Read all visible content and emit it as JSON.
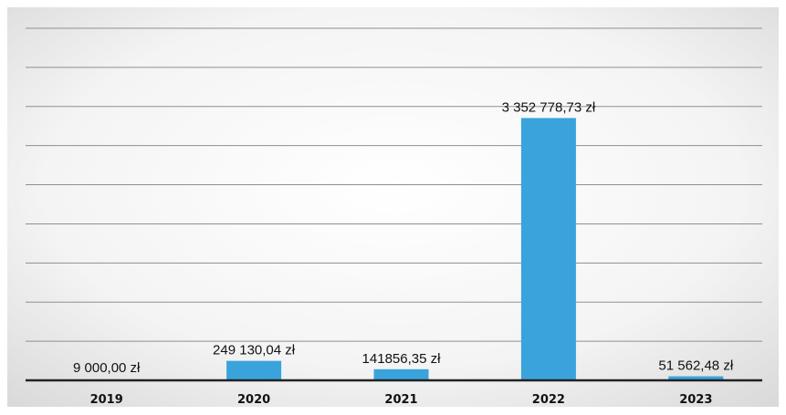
{
  "chart_data": {
    "type": "bar",
    "title": "",
    "xlabel": "",
    "ylabel": "",
    "categories": [
      "2019",
      "2020",
      "2021",
      "2022",
      "2023"
    ],
    "values": [
      9000.0,
      249130.04,
      141856.35,
      3352778.73,
      51562.48
    ],
    "data_labels": [
      "9 000,00 zł",
      "249 130,04 zł",
      "141856,35 zł",
      "3 352 778,73 zł",
      "51 562,48 zł"
    ],
    "ylim": [
      0,
      4500000
    ],
    "grid": true,
    "legend": "none",
    "colors": {
      "bar": "#3aa3dc",
      "axis": "#222222",
      "grid": "#8f8f8f"
    }
  }
}
